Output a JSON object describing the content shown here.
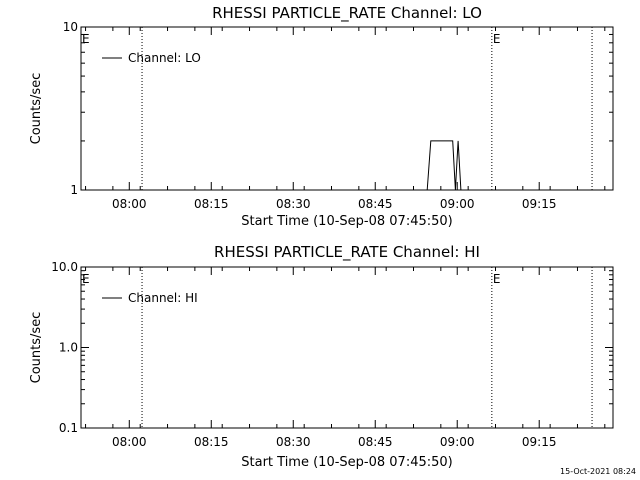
{
  "page": {
    "timestamp": "15-Oct-2021 08:24"
  },
  "chart_data": [
    {
      "type": "line",
      "title": "RHESSI PARTICLE_RATE Channel: LO",
      "xlabel": "Start Time (10-Sep-08 07:45:50)",
      "ylabel": "Counts/sec",
      "x_tick_labels": [
        "08:00",
        "08:15",
        "08:30",
        "08:45",
        "09:00",
        "09:15"
      ],
      "x_ticks_min": [
        480,
        1380,
        2280,
        3180,
        4080,
        4980
      ],
      "xlim_min": [
        -50,
        5790
      ],
      "y_scale": "log",
      "ylim": [
        1,
        10
      ],
      "y_tick_labels": [
        "1",
        "10"
      ],
      "y_tick_values": [
        1,
        10
      ],
      "vlines": [
        {
          "t": 620,
          "label": ""
        },
        {
          "t": 4460,
          "label": "E"
        },
        {
          "t": 5560,
          "label": ""
        }
      ],
      "edge_label": "E",
      "legend": {
        "label": "Channel: LO",
        "position": "top-left"
      },
      "series": [
        {
          "name": "Channel: LO",
          "points": [
            [
              3750,
              1
            ],
            [
              3790,
              2
            ],
            [
              4030,
              2
            ],
            [
              4060,
              1
            ],
            [
              4090,
              2
            ],
            [
              4120,
              1
            ]
          ]
        }
      ]
    },
    {
      "type": "line",
      "title": "RHESSI PARTICLE_RATE Channel: HI",
      "xlabel": "Start Time (10-Sep-08 07:45:50)",
      "ylabel": "Counts/sec",
      "x_tick_labels": [
        "08:00",
        "08:15",
        "08:30",
        "08:45",
        "09:00",
        "09:15"
      ],
      "x_ticks_min": [
        480,
        1380,
        2280,
        3180,
        4080,
        4980
      ],
      "xlim_min": [
        -50,
        5790
      ],
      "y_scale": "log",
      "ylim": [
        0.1,
        10
      ],
      "y_tick_labels": [
        "0.1",
        "1.0",
        "10.0"
      ],
      "y_tick_values": [
        0.1,
        1,
        10
      ],
      "vlines": [
        {
          "t": 620,
          "label": ""
        },
        {
          "t": 4460,
          "label": "E"
        },
        {
          "t": 5560,
          "label": ""
        }
      ],
      "edge_label": "E",
      "legend": {
        "label": "Channel: HI",
        "position": "top-left"
      },
      "series": [
        {
          "name": "Channel: HI",
          "points": []
        }
      ]
    }
  ]
}
